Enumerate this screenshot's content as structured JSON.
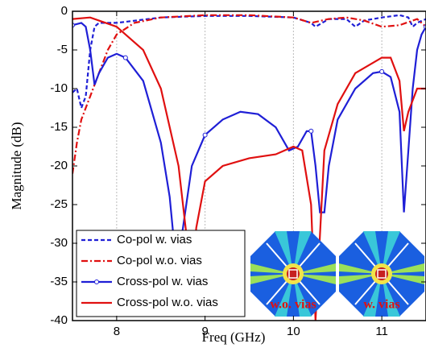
{
  "chart_data": {
    "type": "line",
    "xlabel": "Freq (GHz)",
    "ylabel": "Magnitude (dB)",
    "xlim": [
      7.5,
      11.5
    ],
    "ylim": [
      -40,
      0
    ],
    "xticks": [
      8,
      9,
      10,
      11
    ],
    "yticks": [
      0,
      -5,
      -10,
      -15,
      -20,
      -25,
      -30,
      -35,
      -40
    ],
    "grid": "x",
    "legend": "lower left",
    "series": [
      {
        "name": "Co-pol w. vias",
        "color": "#1f1fd6",
        "style": "dashed",
        "x": [
          7.5,
          7.55,
          7.6,
          7.65,
          7.7,
          7.75,
          7.8,
          8,
          8.5,
          9,
          9.5,
          10,
          10.2,
          10.25,
          10.4,
          10.6,
          10.7,
          10.8,
          11,
          11.2,
          11.3,
          11.35,
          11.4,
          11.5
        ],
        "values": [
          -10.5,
          -10,
          -12.5,
          -11,
          -5,
          -2,
          -1.5,
          -1.5,
          -0.8,
          -0.6,
          -0.6,
          -0.8,
          -1.5,
          -2,
          -1,
          -1,
          -2,
          -1.2,
          -0.8,
          -0.5,
          -0.8,
          -2,
          -1.5,
          -1
        ]
      },
      {
        "name": "Co-pol w.o. vias",
        "color": "#e01010",
        "style": "dashdot",
        "x": [
          7.5,
          7.55,
          7.6,
          7.7,
          7.8,
          7.9,
          8,
          8.2,
          8.5,
          9,
          9.5,
          10,
          10.2,
          10.4,
          10.6,
          10.8,
          11,
          11.2,
          11.4,
          11.5
        ],
        "values": [
          -21,
          -17,
          -14,
          -11,
          -8,
          -5,
          -3,
          -1.5,
          -0.8,
          -0.5,
          -0.5,
          -0.8,
          -1.5,
          -1,
          -0.8,
          -1.2,
          -2,
          -1.8,
          -1,
          -2
        ]
      },
      {
        "name": "Cross-pol w. vias",
        "color": "#1f1fd6",
        "style": "solid-marker",
        "x": [
          7.5,
          7.6,
          7.65,
          7.7,
          7.75,
          7.8,
          7.9,
          8,
          8.1,
          8.3,
          8.5,
          8.6,
          8.65,
          8.68,
          8.75,
          8.85,
          9,
          9.2,
          9.4,
          9.6,
          9.8,
          9.95,
          10.05,
          10.15,
          10.2,
          10.25,
          10.3,
          10.35,
          10.4,
          10.5,
          10.7,
          10.9,
          11,
          11.1,
          11.2,
          11.25,
          11.3,
          11.35,
          11.4,
          11.45,
          11.5
        ],
        "values": [
          -1.8,
          -1.5,
          -2,
          -5,
          -9.5,
          -8,
          -6,
          -5.5,
          -6,
          -9,
          -17,
          -24,
          -30,
          -33,
          -28,
          -20,
          -16,
          -14,
          -13,
          -13.3,
          -15,
          -18,
          -17.5,
          -15.5,
          -15.5,
          -20,
          -26,
          -26,
          -20,
          -14,
          -10,
          -8,
          -7.8,
          -8.5,
          -13,
          -26,
          -18,
          -10,
          -5,
          -3,
          -2
        ]
      },
      {
        "name": "Cross-pol w.o. vias",
        "color": "#e01010",
        "style": "solid",
        "x": [
          7.5,
          7.7,
          8,
          8.3,
          8.5,
          8.7,
          8.8,
          8.85,
          8.9,
          9,
          9.2,
          9.5,
          9.8,
          10,
          10.1,
          10.2,
          10.25,
          10.35,
          10.5,
          10.7,
          11,
          11.1,
          11.2,
          11.25,
          11.3,
          11.4,
          11.5
        ],
        "values": [
          -1,
          -0.8,
          -2,
          -5,
          -10,
          -20,
          -30,
          -35,
          -28,
          -22,
          -20,
          -19,
          -18.5,
          -17.5,
          -18,
          -25,
          -40,
          -18,
          -12,
          -8,
          -6,
          -6,
          -9,
          -15.5,
          -13,
          -10,
          -10
        ]
      }
    ],
    "insets": [
      "w.o. vias",
      "w. vias"
    ]
  }
}
